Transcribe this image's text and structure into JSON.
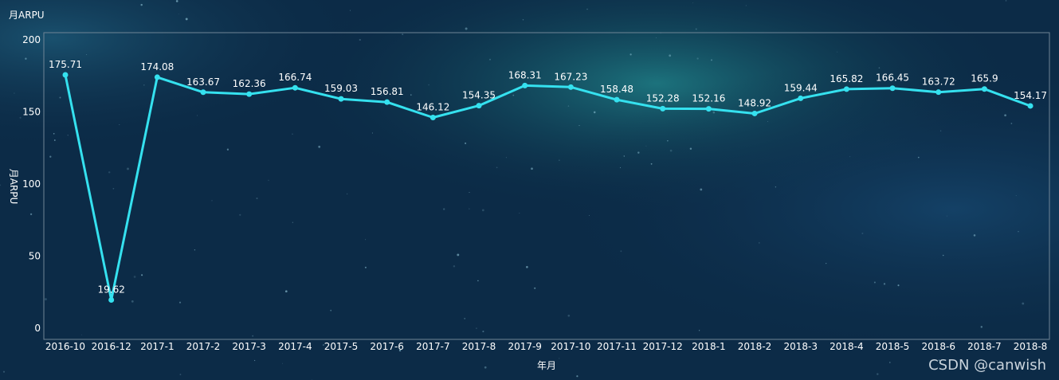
{
  "colors": {
    "line": "#35e1ef",
    "text": "#ffffff",
    "axis": "#8fa6b8",
    "frame": "#6f8596"
  },
  "watermark": "CSDN @canwish",
  "chart_data": {
    "type": "line",
    "title": "",
    "legend_label": "月ARPU",
    "xlabel": "年月",
    "ylabel": "月ARPU",
    "ylim": [
      0,
      200
    ],
    "yticks": [
      0,
      50,
      100,
      150,
      200
    ],
    "grid": false,
    "categories": [
      "2016-10",
      "2016-12",
      "2017-1",
      "2017-2",
      "2017-3",
      "2017-4",
      "2017-5",
      "2017-6",
      "2017-7",
      "2017-8",
      "2017-9",
      "2017-10",
      "2017-11",
      "2017-12",
      "2018-1",
      "2018-2",
      "2018-3",
      "2018-4",
      "2018-5",
      "2018-6",
      "2018-7",
      "2018-8"
    ],
    "series": [
      {
        "name": "月ARPU",
        "values": [
          175.71,
          19.62,
          174.08,
          163.67,
          162.36,
          166.74,
          159.03,
          156.81,
          146.12,
          154.35,
          168.31,
          167.23,
          158.48,
          152.28,
          152.16,
          148.92,
          159.44,
          165.82,
          166.45,
          163.72,
          165.9,
          154.17
        ]
      }
    ]
  }
}
